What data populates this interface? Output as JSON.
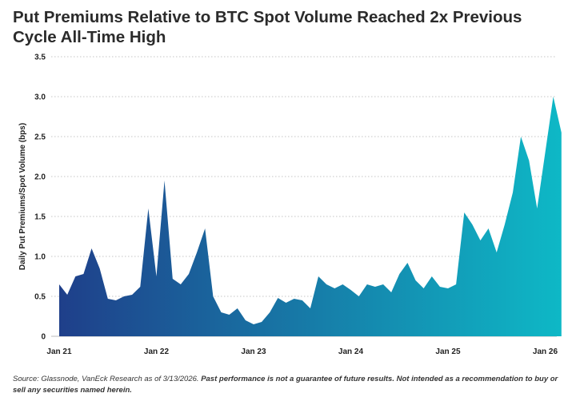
{
  "chart_data": {
    "type": "area",
    "title": "Put Premiums Relative to BTC Spot Volume Reached 2x Previous Cycle All-Time High",
    "ylabel": "Daily Put Premiums/Spot Volume (bps)",
    "xlabel": "",
    "ylim": [
      0,
      3.5
    ],
    "yticks": [
      "0",
      "0.5",
      "1.0",
      "1.5",
      "2.0",
      "2.5",
      "3.0",
      "3.5"
    ],
    "xticks": [
      "Jan 21",
      "Jan 22",
      "Jan 23",
      "Jan 24",
      "Jan 25",
      "Jan 26"
    ],
    "grid": "horizontal dotted",
    "gradient": [
      "#1f3f8a",
      "#0eb8c6"
    ],
    "x": [
      "2021-01",
      "2021-02",
      "2021-03",
      "2021-04",
      "2021-05",
      "2021-06",
      "2021-07",
      "2021-08",
      "2021-09",
      "2021-10",
      "2021-11",
      "2021-12",
      "2022-01",
      "2022-02",
      "2022-03",
      "2022-04",
      "2022-05",
      "2022-06",
      "2022-07",
      "2022-08",
      "2022-09",
      "2022-10",
      "2022-11",
      "2022-12",
      "2023-01",
      "2023-02",
      "2023-03",
      "2023-04",
      "2023-05",
      "2023-06",
      "2023-07",
      "2023-08",
      "2023-09",
      "2023-10",
      "2023-11",
      "2023-12",
      "2024-01",
      "2024-02",
      "2024-03",
      "2024-04",
      "2024-05",
      "2024-06",
      "2024-07",
      "2024-08",
      "2024-09",
      "2024-10",
      "2024-11",
      "2024-12",
      "2025-01",
      "2025-02",
      "2025-03",
      "2025-04",
      "2025-05",
      "2025-06",
      "2025-07",
      "2025-08",
      "2025-09",
      "2025-10",
      "2025-11",
      "2025-12",
      "2026-01",
      "2026-02",
      "2026-03"
    ],
    "series": [
      {
        "values": [
          0.65,
          0.52,
          0.75,
          0.78,
          1.1,
          0.85,
          0.47,
          0.45,
          0.5,
          0.52,
          0.62,
          1.6,
          0.75,
          1.95,
          0.72,
          0.65,
          0.78,
          1.05,
          1.35,
          0.5,
          0.3,
          0.27,
          0.35,
          0.2,
          0.15,
          0.18,
          0.3,
          0.48,
          0.42,
          0.47,
          0.45,
          0.35,
          0.75,
          0.65,
          0.6,
          0.65,
          0.58,
          0.5,
          0.65,
          0.62,
          0.65,
          0.55,
          0.78,
          0.92,
          0.7,
          0.6,
          0.75,
          0.62,
          0.6,
          0.65,
          1.55,
          1.4,
          1.2,
          1.35,
          1.05,
          1.4,
          1.8,
          2.5,
          2.2,
          1.6,
          2.3,
          3.0,
          2.55
        ]
      }
    ]
  },
  "footer": {
    "source": "Source: Glassnode, VanEck Research as of 3/13/2026. ",
    "disclaimer": "Past performance is not a guarantee of future results. Not intended as a recommendation to buy or sell any securities named herein."
  }
}
